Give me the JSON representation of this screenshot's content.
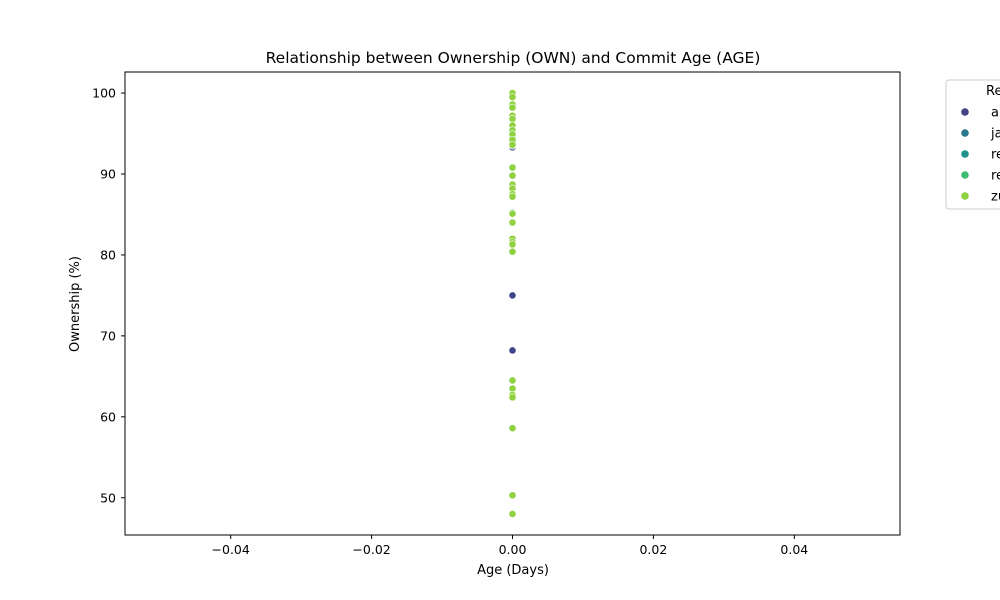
{
  "chart_data": {
    "type": "scatter",
    "title": "Relationship between Ownership (OWN) and Commit Age (AGE)",
    "xlabel": "Age (Days)",
    "ylabel": "Ownership (%)",
    "xlim": [
      -0.055,
      0.055
    ],
    "ylim": [
      45.4,
      102.6
    ],
    "xticks": [
      -0.04,
      -0.02,
      0.0,
      0.02,
      0.04
    ],
    "xtick_labels": [
      "−0.04",
      "−0.02",
      "0.00",
      "0.02",
      "0.04"
    ],
    "yticks": [
      50,
      60,
      70,
      80,
      90,
      100
    ],
    "ytick_labels": [
      "50",
      "60",
      "70",
      "80",
      "90",
      "100"
    ],
    "grid": false,
    "legend": {
      "title": "Re",
      "placement": "outside-top-right",
      "entries": [
        "a",
        "ja",
        "re",
        "re",
        "zu"
      ]
    },
    "series": [
      {
        "name": "a",
        "color": "#414487",
        "points": [
          [
            0,
            75.0
          ],
          [
            0,
            68.2
          ],
          [
            0,
            93.3
          ],
          [
            0,
            93.8
          ]
        ]
      },
      {
        "name": "ja",
        "color": "#2a788e",
        "points": [
          [
            0,
            85.2
          ],
          [
            0,
            93.5
          ]
        ]
      },
      {
        "name": "re",
        "color": "#21918c",
        "points": [
          [
            0,
            94.0
          ]
        ]
      },
      {
        "name": "re",
        "color": "#3fbc73",
        "points": [
          [
            0,
            94.5
          ]
        ]
      },
      {
        "name": "zu",
        "color": "#8fd13f",
        "points": [
          [
            0,
            100.0
          ],
          [
            0,
            99.5
          ],
          [
            0,
            98.6
          ],
          [
            0,
            98.2
          ],
          [
            0,
            97.2
          ],
          [
            0,
            96.8
          ],
          [
            0,
            96.0
          ],
          [
            0,
            95.4
          ],
          [
            0,
            94.9
          ],
          [
            0,
            94.2
          ],
          [
            0,
            93.6
          ],
          [
            0,
            90.8
          ],
          [
            0,
            89.8
          ],
          [
            0,
            88.7
          ],
          [
            0,
            88.2
          ],
          [
            0,
            87.5
          ],
          [
            0,
            87.2
          ],
          [
            0,
            85.1
          ],
          [
            0,
            84.0
          ],
          [
            0,
            82.0
          ],
          [
            0,
            81.6
          ],
          [
            0,
            81.3
          ],
          [
            0,
            80.4
          ],
          [
            0,
            64.5
          ],
          [
            0,
            63.5
          ],
          [
            0,
            62.7
          ],
          [
            0,
            62.4
          ],
          [
            0,
            58.6
          ],
          [
            0,
            50.3
          ],
          [
            0,
            48.0
          ]
        ]
      }
    ]
  }
}
